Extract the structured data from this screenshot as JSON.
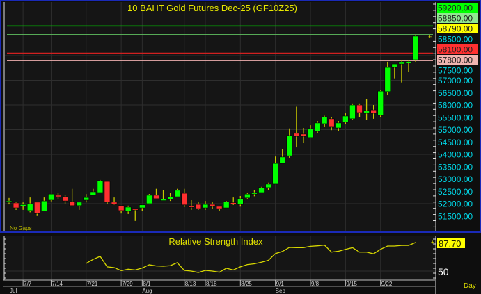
{
  "chart_data": [
    {
      "type": "candlestick",
      "title": "10  BAHT  Gold  Futures  Dec-25  (GF10Z25)",
      "note": "No Gaps",
      "ylim": [
        51200,
        59500
      ],
      "y_ticks": [
        58500,
        57500,
        57000,
        56500,
        56000,
        55500,
        55000,
        54500,
        54000,
        53500,
        53000,
        52500,
        52000,
        51500
      ],
      "grid": true,
      "colors": {
        "up": "#00ff00",
        "down": "#ff3030",
        "wick": "#c8c800",
        "tick_label": "#00d8e8",
        "title": "#e8e800"
      },
      "levels": [
        {
          "value": 59200,
          "label": "59200.00",
          "color": "#00cc00",
          "bg": "#00ff00"
        },
        {
          "value": 58850,
          "label": "58850.00",
          "color": "#60c060",
          "bg": "#90e890"
        },
        {
          "value": 58790,
          "label": "58790.00",
          "color": "#e8e800",
          "bg": "#ffff00",
          "last_price": true
        },
        {
          "value": 58100,
          "label": "58100.00",
          "color": "#d02020",
          "bg": "#ff3030"
        },
        {
          "value": 57800,
          "label": "57800.00",
          "color": "#f0b0b0",
          "bg": "#f0b4b0"
        }
      ],
      "candles": [
        {
          "o": 52100,
          "h": 52230,
          "l": 51970,
          "c": 52110
        },
        {
          "o": 52030,
          "h": 52060,
          "l": 51750,
          "c": 51830
        },
        {
          "o": 51950,
          "h": 52050,
          "l": 51750,
          "c": 51960
        },
        {
          "o": 51720,
          "h": 52250,
          "l": 51650,
          "c": 52000
        },
        {
          "o": 52060,
          "h": 52060,
          "l": 51500,
          "c": 51600
        },
        {
          "o": 51700,
          "h": 52250,
          "l": 51700,
          "c": 52110
        },
        {
          "o": 52140,
          "h": 52390,
          "l": 52100,
          "c": 52390
        },
        {
          "o": 52340,
          "h": 52450,
          "l": 52200,
          "c": 52280
        },
        {
          "o": 52280,
          "h": 52340,
          "l": 52000,
          "c": 52110
        },
        {
          "o": 52080,
          "h": 52600,
          "l": 51920,
          "c": 51920
        },
        {
          "o": 51920,
          "h": 52060,
          "l": 51750,
          "c": 52060
        },
        {
          "o": 52140,
          "h": 52390,
          "l": 52050,
          "c": 52250
        },
        {
          "o": 52340,
          "h": 52600,
          "l": 52340,
          "c": 52480
        },
        {
          "o": 52450,
          "h": 52960,
          "l": 52450,
          "c": 52930
        },
        {
          "o": 52900,
          "h": 52900,
          "l": 52000,
          "c": 52060
        },
        {
          "o": 52060,
          "h": 52250,
          "l": 51950,
          "c": 51970
        },
        {
          "o": 51920,
          "h": 51920,
          "l": 51600,
          "c": 51720
        },
        {
          "o": 51690,
          "h": 51920,
          "l": 51580,
          "c": 51860
        },
        {
          "o": 51800,
          "h": 51800,
          "l": 51300,
          "c": 51750
        },
        {
          "o": 51830,
          "h": 51950,
          "l": 51700,
          "c": 51950
        },
        {
          "o": 52000,
          "h": 52390,
          "l": 51970,
          "c": 52340
        },
        {
          "o": 52340,
          "h": 52600,
          "l": 52200,
          "c": 52200
        },
        {
          "o": 52170,
          "h": 52560,
          "l": 52170,
          "c": 52180
        },
        {
          "o": 52170,
          "h": 52450,
          "l": 52110,
          "c": 52280
        },
        {
          "o": 52280,
          "h": 52600,
          "l": 52280,
          "c": 52540
        },
        {
          "o": 52420,
          "h": 52600,
          "l": 51860,
          "c": 51950
        },
        {
          "o": 51910,
          "h": 52140,
          "l": 51750,
          "c": 51900
        },
        {
          "o": 51970,
          "h": 52060,
          "l": 51750,
          "c": 51800
        },
        {
          "o": 51830,
          "h": 52110,
          "l": 51750,
          "c": 51970
        },
        {
          "o": 51970,
          "h": 52080,
          "l": 51800,
          "c": 51890
        },
        {
          "o": 51890,
          "h": 51890,
          "l": 51690,
          "c": 51800
        },
        {
          "o": 51830,
          "h": 52110,
          "l": 51830,
          "c": 52080
        },
        {
          "o": 52040,
          "h": 52250,
          "l": 51950,
          "c": 52030
        },
        {
          "o": 51970,
          "h": 52310,
          "l": 51880,
          "c": 52200
        },
        {
          "o": 52230,
          "h": 52450,
          "l": 52200,
          "c": 52390
        },
        {
          "o": 52390,
          "h": 52560,
          "l": 52300,
          "c": 52450
        },
        {
          "o": 52450,
          "h": 52680,
          "l": 52450,
          "c": 52650
        },
        {
          "o": 52650,
          "h": 52850,
          "l": 52560,
          "c": 52790
        },
        {
          "o": 52790,
          "h": 53910,
          "l": 52790,
          "c": 53630
        },
        {
          "o": 53630,
          "h": 54220,
          "l": 53630,
          "c": 53890
        },
        {
          "o": 53940,
          "h": 55050,
          "l": 53850,
          "c": 54760
        },
        {
          "o": 54850,
          "h": 55930,
          "l": 54280,
          "c": 54730
        },
        {
          "o": 54820,
          "h": 55070,
          "l": 54450,
          "c": 54730
        },
        {
          "o": 54680,
          "h": 55180,
          "l": 54650,
          "c": 55040
        },
        {
          "o": 54930,
          "h": 55350,
          "l": 54850,
          "c": 55270
        },
        {
          "o": 55240,
          "h": 55560,
          "l": 55100,
          "c": 55520
        },
        {
          "o": 55440,
          "h": 55520,
          "l": 54980,
          "c": 55100
        },
        {
          "o": 55070,
          "h": 55350,
          "l": 54930,
          "c": 55270
        },
        {
          "o": 55300,
          "h": 55660,
          "l": 55210,
          "c": 55550
        },
        {
          "o": 55440,
          "h": 56060,
          "l": 55410,
          "c": 56000
        },
        {
          "o": 56000,
          "h": 56060,
          "l": 55520,
          "c": 55690
        },
        {
          "o": 55660,
          "h": 56230,
          "l": 55380,
          "c": 55770
        },
        {
          "o": 55800,
          "h": 56000,
          "l": 55440,
          "c": 55660
        },
        {
          "o": 55580,
          "h": 56620,
          "l": 55520,
          "c": 56560
        },
        {
          "o": 56540,
          "h": 57750,
          "l": 56400,
          "c": 57520
        },
        {
          "o": 57520,
          "h": 57660,
          "l": 57080,
          "c": 57660
        },
        {
          "o": 57660,
          "h": 57830,
          "l": 56910,
          "c": 57750
        },
        {
          "o": 57750,
          "h": 57830,
          "l": 57330,
          "c": 57760
        },
        {
          "o": 57830,
          "h": 58850,
          "l": 57750,
          "c": 58790
        }
      ]
    },
    {
      "type": "line",
      "title": "Relative Strength Index",
      "last_value_label": "87.70",
      "y_ticks": [
        "50"
      ],
      "start_index": 11,
      "color": "#d8d800",
      "values": [
        60.2,
        65.4,
        69.4,
        55.6,
        54.6,
        50.6,
        52.5,
        51.5,
        54.0,
        58.3,
        56.8,
        56.5,
        57.1,
        61.1,
        50.9,
        50.0,
        48.1,
        50.9,
        50.0,
        48.5,
        53.7,
        51.5,
        55.6,
        58.6,
        59.6,
        61.7,
        64.2,
        73.1,
        75.9,
        81.2,
        80.9,
        80.9,
        82.7,
        83.3,
        84.3,
        75.0,
        76.2,
        78.7,
        80.9,
        75.0,
        75.0,
        72.8,
        78.7,
        83.0,
        83.0,
        83.9,
        83.9,
        87.7
      ]
    }
  ],
  "x_axis": {
    "dates": [
      {
        "label": "7/7",
        "index": 2
      },
      {
        "label": "7/14",
        "index": 6
      },
      {
        "label": "7/21",
        "index": 11
      },
      {
        "label": "7/29",
        "index": 16
      },
      {
        "label": "8/1",
        "index": 19
      },
      {
        "label": "8/13",
        "index": 25
      },
      {
        "label": "8/18",
        "index": 28
      },
      {
        "label": "8/25",
        "index": 33
      },
      {
        "label": "9/1",
        "index": 38
      },
      {
        "label": "9/8",
        "index": 43
      },
      {
        "label": "9/15",
        "index": 48
      },
      {
        "label": "9/22",
        "index": 53
      }
    ],
    "months": [
      {
        "label": "Jul",
        "index": 0
      },
      {
        "label": "Aug",
        "index": 19
      },
      {
        "label": "Sep",
        "index": 38
      }
    ],
    "period": "Day"
  }
}
